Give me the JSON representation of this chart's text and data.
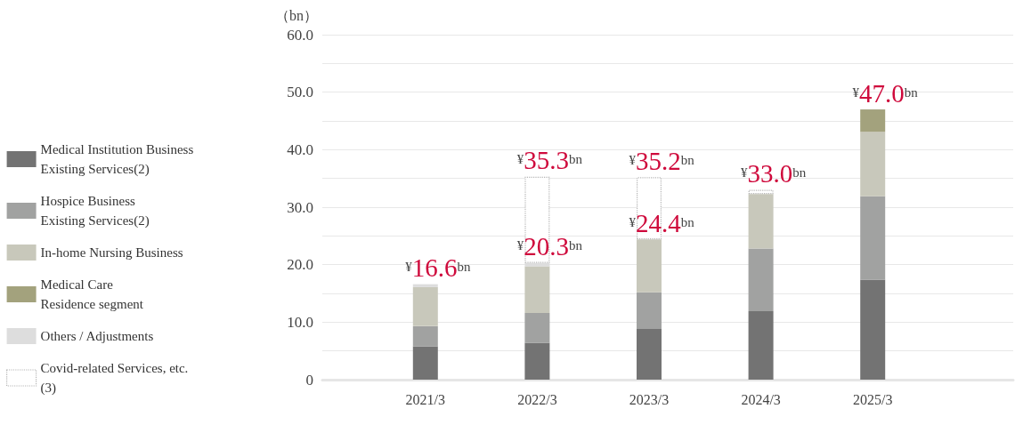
{
  "chart_data": {
    "type": "bar",
    "stacked": true,
    "ylabel": "（bn）",
    "categories": [
      "2021/3",
      "2022/3",
      "2023/3",
      "2024/3",
      "2025/3"
    ],
    "series": [
      {
        "name": "Medical Institution Business\nExisting Services(2)",
        "color": "#737373",
        "values": [
          5.8,
          6.4,
          8.8,
          11.9,
          17.4
        ]
      },
      {
        "name": "Hospice Business\nExisting Services(2)",
        "color": "#a1a2a1",
        "values": [
          3.5,
          5.2,
          6.4,
          10.9,
          14.5
        ]
      },
      {
        "name": "In-home Nursing Business",
        "color": "#c8c8bb",
        "values": [
          6.8,
          8.1,
          9.2,
          9.5,
          11.2
        ]
      },
      {
        "name": "Medical Care\nResidence segment",
        "color": "#a3a27d",
        "values": [
          null,
          null,
          null,
          null,
          3.9
        ]
      },
      {
        "name": "Others / Adjustments",
        "color": "#dddddd",
        "values": [
          0.5,
          0.6,
          null,
          null,
          null
        ]
      },
      {
        "name": "Covid-related Services, etc.\n(3)",
        "color": "#b5b5b5",
        "line_style": "dotted",
        "values": [
          null,
          15.0,
          10.8,
          0.7,
          null
        ]
      }
    ],
    "ylim": [
      0,
      60
    ],
    "yticks": [
      0,
      {
        "value": 5,
        "label": null
      },
      {
        "value": 10,
        "label": "10.0"
      },
      {
        "value": 15,
        "label": null
      },
      {
        "value": 20,
        "label": "20.0"
      },
      {
        "value": 25,
        "label": null
      },
      {
        "value": 30,
        "label": "30.0"
      },
      {
        "value": 35,
        "label": null
      },
      {
        "value": 40,
        "label": "40.0"
      },
      {
        "value": 45,
        "label": null
      },
      {
        "value": 50,
        "label": "50.0"
      },
      {
        "value": 55,
        "label": null
      },
      {
        "value": 60,
        "label": "60.0"
      }
    ],
    "grid": "y",
    "legend": "left",
    "annotations": [
      {
        "text": "¥16.6bn",
        "x": "2021/3",
        "y": 16.6
      },
      {
        "text": "¥20.3bn",
        "x": "2022/3",
        "y": 20.3
      },
      {
        "text": "¥35.3bn",
        "x": "2022/3",
        "y": 35.3
      },
      {
        "text": "¥24.4bn",
        "x": "2023/3",
        "y": 24.4
      },
      {
        "text": "¥35.2bn",
        "x": "2023/3",
        "y": 35.2
      },
      {
        "text": "¥33.0bn",
        "x": "2024/3",
        "y": 33.0
      },
      {
        "text": "¥47.0bn",
        "x": "2025/3",
        "y": 47.0
      }
    ]
  }
}
